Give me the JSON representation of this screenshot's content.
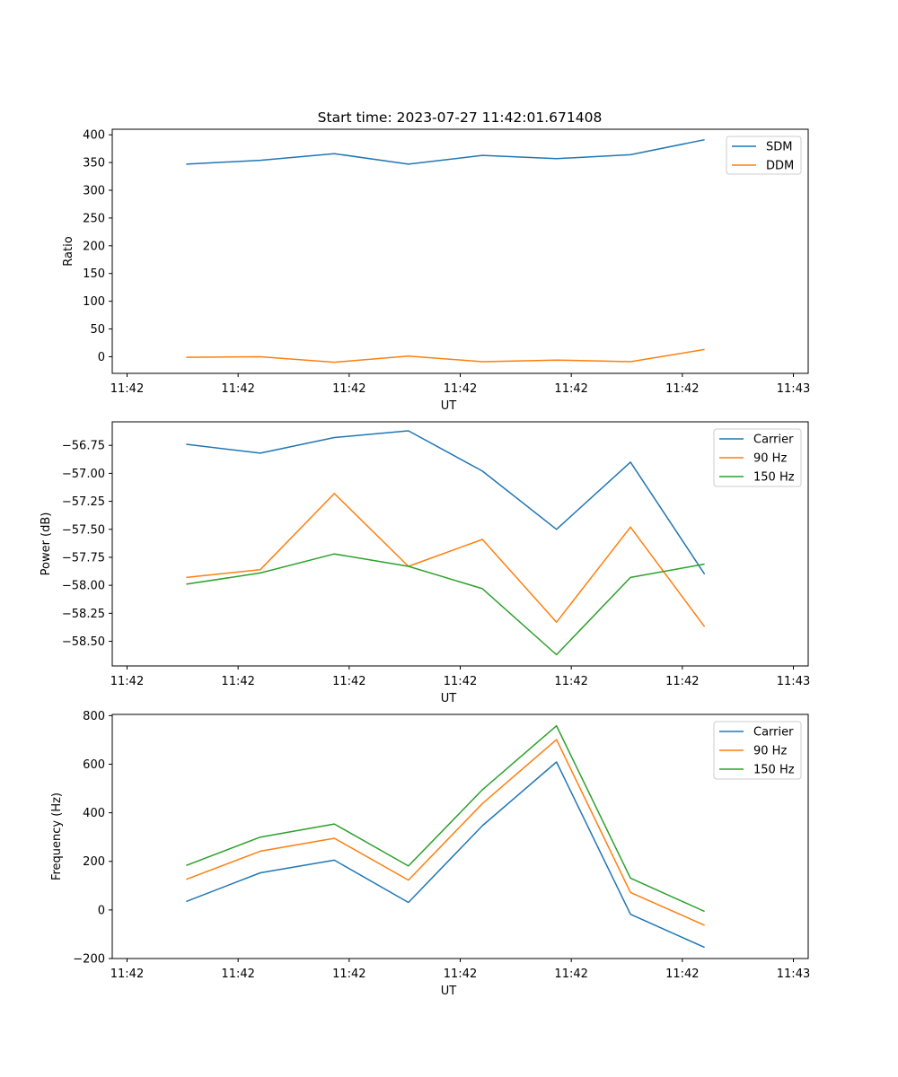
{
  "figure_title": "Start time: 2023-07-27 11:42:01.671408",
  "colors": {
    "blue": "#1f77b4",
    "orange": "#ff7f0e",
    "green": "#2ca02c"
  },
  "chart_data": [
    {
      "type": "line",
      "title": "Start time: 2023-07-27 11:42:01.671408",
      "xlabel": "UT",
      "ylabel": "Ratio",
      "x": [
        1,
        2,
        3,
        4,
        5,
        6,
        7,
        8
      ],
      "xlim": [
        0,
        9.4
      ],
      "x_ticks": [
        0.2,
        1.7,
        3.2,
        4.7,
        6.2,
        7.7,
        9.2
      ],
      "x_tick_labels": [
        "11:42",
        "11:42",
        "11:42",
        "11:42",
        "11:42",
        "11:42",
        "11:43"
      ],
      "ylim": [
        -30,
        410
      ],
      "y_ticks": [
        0,
        50,
        100,
        150,
        200,
        250,
        300,
        350,
        400
      ],
      "y_tick_labels": [
        "0",
        "50",
        "100",
        "150",
        "200",
        "250",
        "300",
        "350",
        "400"
      ],
      "legend_position": "top-right",
      "series": [
        {
          "name": "SDM",
          "color": "#1f77b4",
          "values": [
            347,
            354,
            366,
            347,
            363,
            357,
            364,
            391
          ]
        },
        {
          "name": "DDM",
          "color": "#ff7f0e",
          "values": [
            -1,
            0,
            -10,
            1,
            -9,
            -6,
            -9,
            13
          ]
        }
      ]
    },
    {
      "type": "line",
      "title": "",
      "xlabel": "UT",
      "ylabel": "Power (dB)",
      "x": [
        1,
        2,
        3,
        4,
        5,
        6,
        7,
        8
      ],
      "xlim": [
        0,
        9.4
      ],
      "x_ticks": [
        0.2,
        1.7,
        3.2,
        4.7,
        6.2,
        7.7,
        9.2
      ],
      "x_tick_labels": [
        "11:42",
        "11:42",
        "11:42",
        "11:42",
        "11:42",
        "11:42",
        "11:43"
      ],
      "ylim": [
        -58.72,
        -56.54
      ],
      "y_ticks": [
        -58.5,
        -58.25,
        -58.0,
        -57.75,
        -57.5,
        -57.25,
        -57.0,
        -56.75
      ],
      "y_tick_labels": [
        "−58.50",
        "−58.25",
        "−58.00",
        "−57.75",
        "−57.50",
        "−57.25",
        "−57.00",
        "−56.75"
      ],
      "legend_position": "top-right",
      "series": [
        {
          "name": "Carrier",
          "color": "#1f77b4",
          "values": [
            -56.74,
            -56.82,
            -56.68,
            -56.62,
            -56.98,
            -57.5,
            -56.9,
            -57.9
          ]
        },
        {
          "name": "90 Hz",
          "color": "#ff7f0e",
          "values": [
            -57.93,
            -57.86,
            -57.18,
            -57.83,
            -57.59,
            -58.33,
            -57.48,
            -58.37
          ]
        },
        {
          "name": "150 Hz",
          "color": "#2ca02c",
          "values": [
            -57.99,
            -57.89,
            -57.72,
            -57.83,
            -58.03,
            -58.62,
            -57.93,
            -57.81
          ]
        }
      ]
    },
    {
      "type": "line",
      "title": "",
      "xlabel": "UT",
      "ylabel": "Frequency (Hz)",
      "x": [
        1,
        2,
        3,
        4,
        5,
        6,
        7,
        8
      ],
      "xlim": [
        0,
        9.4
      ],
      "x_ticks": [
        0.2,
        1.7,
        3.2,
        4.7,
        6.2,
        7.7,
        9.2
      ],
      "x_tick_labels": [
        "11:42",
        "11:42",
        "11:42",
        "11:42",
        "11:42",
        "11:42",
        "11:43"
      ],
      "ylim": [
        -200,
        805
      ],
      "y_ticks": [
        -200,
        0,
        200,
        400,
        600,
        800
      ],
      "y_tick_labels": [
        "−200",
        "0",
        "200",
        "400",
        "600",
        "800"
      ],
      "legend_position": "top-right",
      "series": [
        {
          "name": "Carrier",
          "color": "#1f77b4",
          "values": [
            35,
            153,
            205,
            31,
            347,
            609,
            -18,
            -154
          ]
        },
        {
          "name": "90 Hz",
          "color": "#ff7f0e",
          "values": [
            126,
            242,
            295,
            123,
            438,
            701,
            72,
            -63
          ]
        },
        {
          "name": "150 Hz",
          "color": "#2ca02c",
          "values": [
            183,
            300,
            354,
            181,
            495,
            758,
            131,
            -6
          ]
        }
      ]
    }
  ]
}
